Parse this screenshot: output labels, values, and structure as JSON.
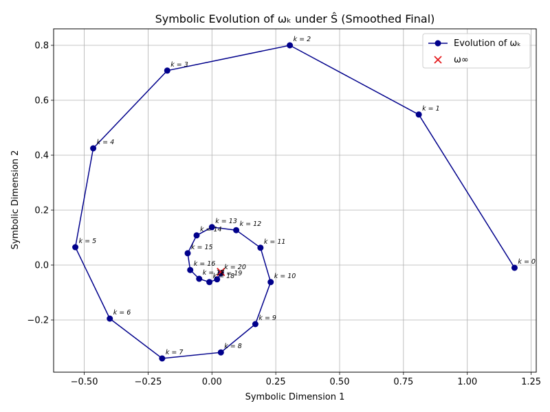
{
  "chart_data": {
    "type": "line",
    "title": "Symbolic Evolution of ωₖ under Ŝ (Smoothed Final)",
    "xlabel": "Symbolic Dimension 1",
    "ylabel": "Symbolic Dimension 2",
    "xlim": [
      -0.62,
      1.27
    ],
    "ylim": [
      -0.39,
      0.86
    ],
    "xticks": [
      -0.5,
      -0.25,
      0.0,
      0.25,
      0.5,
      0.75,
      1.0,
      1.25
    ],
    "xtick_labels": [
      "−0.50",
      "−0.25",
      "0.00",
      "0.25",
      "0.50",
      "0.75",
      "1.00",
      "1.25"
    ],
    "yticks": [
      -0.2,
      0.0,
      0.2,
      0.4,
      0.6,
      0.8
    ],
    "ytick_labels": [
      "−0.2",
      "0.0",
      "0.2",
      "0.4",
      "0.6",
      "0.8"
    ],
    "grid": true,
    "legend_position": "top-right",
    "series": [
      {
        "name": "Evolution of ωₖ",
        "color": "#00008b",
        "marker": "circle",
        "points": [
          {
            "label": "k = 0",
            "x": 1.185,
            "y": -0.01
          },
          {
            "label": "k = 1",
            "x": 0.81,
            "y": 0.548
          },
          {
            "label": "k = 2",
            "x": 0.305,
            "y": 0.8
          },
          {
            "label": "k = 3",
            "x": -0.175,
            "y": 0.708
          },
          {
            "label": "k = 4",
            "x": -0.465,
            "y": 0.425
          },
          {
            "label": "k = 5",
            "x": -0.535,
            "y": 0.065
          },
          {
            "label": "k = 6",
            "x": -0.4,
            "y": -0.195
          },
          {
            "label": "k = 7",
            "x": -0.195,
            "y": -0.34
          },
          {
            "label": "k = 8",
            "x": 0.035,
            "y": -0.318
          },
          {
            "label": "k = 9",
            "x": 0.17,
            "y": -0.215
          },
          {
            "label": "k = 10",
            "x": 0.23,
            "y": -0.062
          },
          {
            "label": "k = 11",
            "x": 0.19,
            "y": 0.063
          },
          {
            "label": "k = 12",
            "x": 0.095,
            "y": 0.127
          },
          {
            "label": "k = 13",
            "x": 0.0,
            "y": 0.138
          },
          {
            "label": "k = 14",
            "x": -0.06,
            "y": 0.108
          },
          {
            "label": "k = 15",
            "x": -0.095,
            "y": 0.043
          },
          {
            "label": "k = 16",
            "x": -0.085,
            "y": -0.018
          },
          {
            "label": "k = 17",
            "x": -0.05,
            "y": -0.05
          },
          {
            "label": "k = 18",
            "x": -0.01,
            "y": -0.062
          },
          {
            "label": "k = 19",
            "x": 0.02,
            "y": -0.052
          },
          {
            "label": "k = 20",
            "x": 0.035,
            "y": -0.03
          }
        ]
      },
      {
        "name": "ω∞",
        "color": "#e41a1c",
        "marker": "x",
        "points": [
          {
            "x": 0.035,
            "y": -0.025
          }
        ]
      }
    ]
  }
}
